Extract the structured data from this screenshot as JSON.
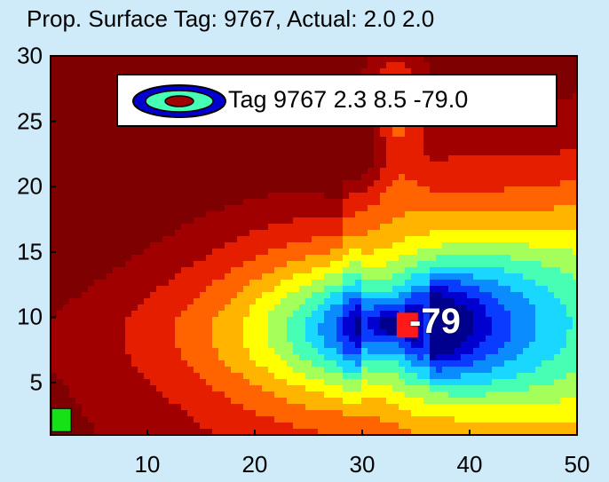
{
  "title": "Prop. Surface   Tag:   9767, Actual: 2.0 2.0",
  "legend": {
    "label": "Tag 9767 2.3 8.5 -79.0"
  },
  "peak_label": "-79",
  "colors": {
    "background": "#cfeaf8",
    "tag_marker": "#ff1a1a",
    "actual_marker": "#16e016",
    "colormap": [
      "#00008f",
      "#0000d0",
      "#0a3cff",
      "#0a8cff",
      "#19d7ff",
      "#46ffb4",
      "#a5ff5a",
      "#ffff00",
      "#ffb400",
      "#ff6400",
      "#e61e00",
      "#a00000",
      "#7f0000"
    ]
  },
  "chart_data": {
    "type": "contour",
    "title": "Prop. Surface   Tag:   9767, Actual: 2.0 2.0",
    "xlim": [
      1,
      50
    ],
    "ylim": [
      1,
      30
    ],
    "x_ticks": [
      10,
      20,
      30,
      40,
      50
    ],
    "y_ticks": [
      5,
      10,
      15,
      20,
      25,
      30
    ],
    "colormap": "jet",
    "contour_levels": 12,
    "minimum": {
      "x": 34.2,
      "y": 9.4,
      "value": -79.0,
      "label": "-79"
    },
    "tag_estimate": {
      "x": 34.2,
      "y": 9.4
    },
    "actual_position": {
      "x": 2,
      "y": 2
    },
    "legend": "Tag 9767 2.3 8.5 -79.0",
    "grid": false
  }
}
